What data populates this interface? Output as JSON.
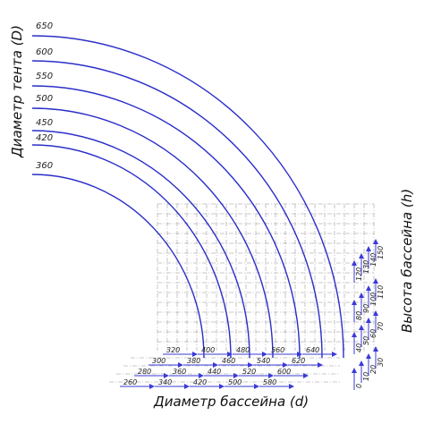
{
  "titles": {
    "tent_diameter": "Диаметр тента (D)",
    "pool_diameter": "Диаметр бассейна (d)",
    "pool_height": "Высота бассейна (h)"
  },
  "tent_labels": [
    "650",
    "600",
    "550",
    "500",
    "450",
    "420",
    "360"
  ],
  "pool_rows": [
    [
      "320",
      "400",
      "480",
      "560",
      "640"
    ],
    [
      "300",
      "380",
      "460",
      "540",
      "620"
    ],
    [
      "280",
      "360",
      "440",
      "520",
      "600"
    ],
    [
      "260",
      "340",
      "420",
      "500",
      "580"
    ]
  ],
  "height_groups": [
    [
      "0",
      "10",
      "20",
      "30"
    ],
    [
      "40",
      "50",
      "60",
      "70"
    ],
    [
      "80",
      "90",
      "100",
      "110"
    ],
    [
      "120",
      "130",
      "140",
      "150"
    ]
  ],
  "colors": {
    "curve": "#2a2ec8",
    "arrow": "#3a3ad8",
    "grid": "#b8b8b8",
    "text": "#222222"
  }
}
